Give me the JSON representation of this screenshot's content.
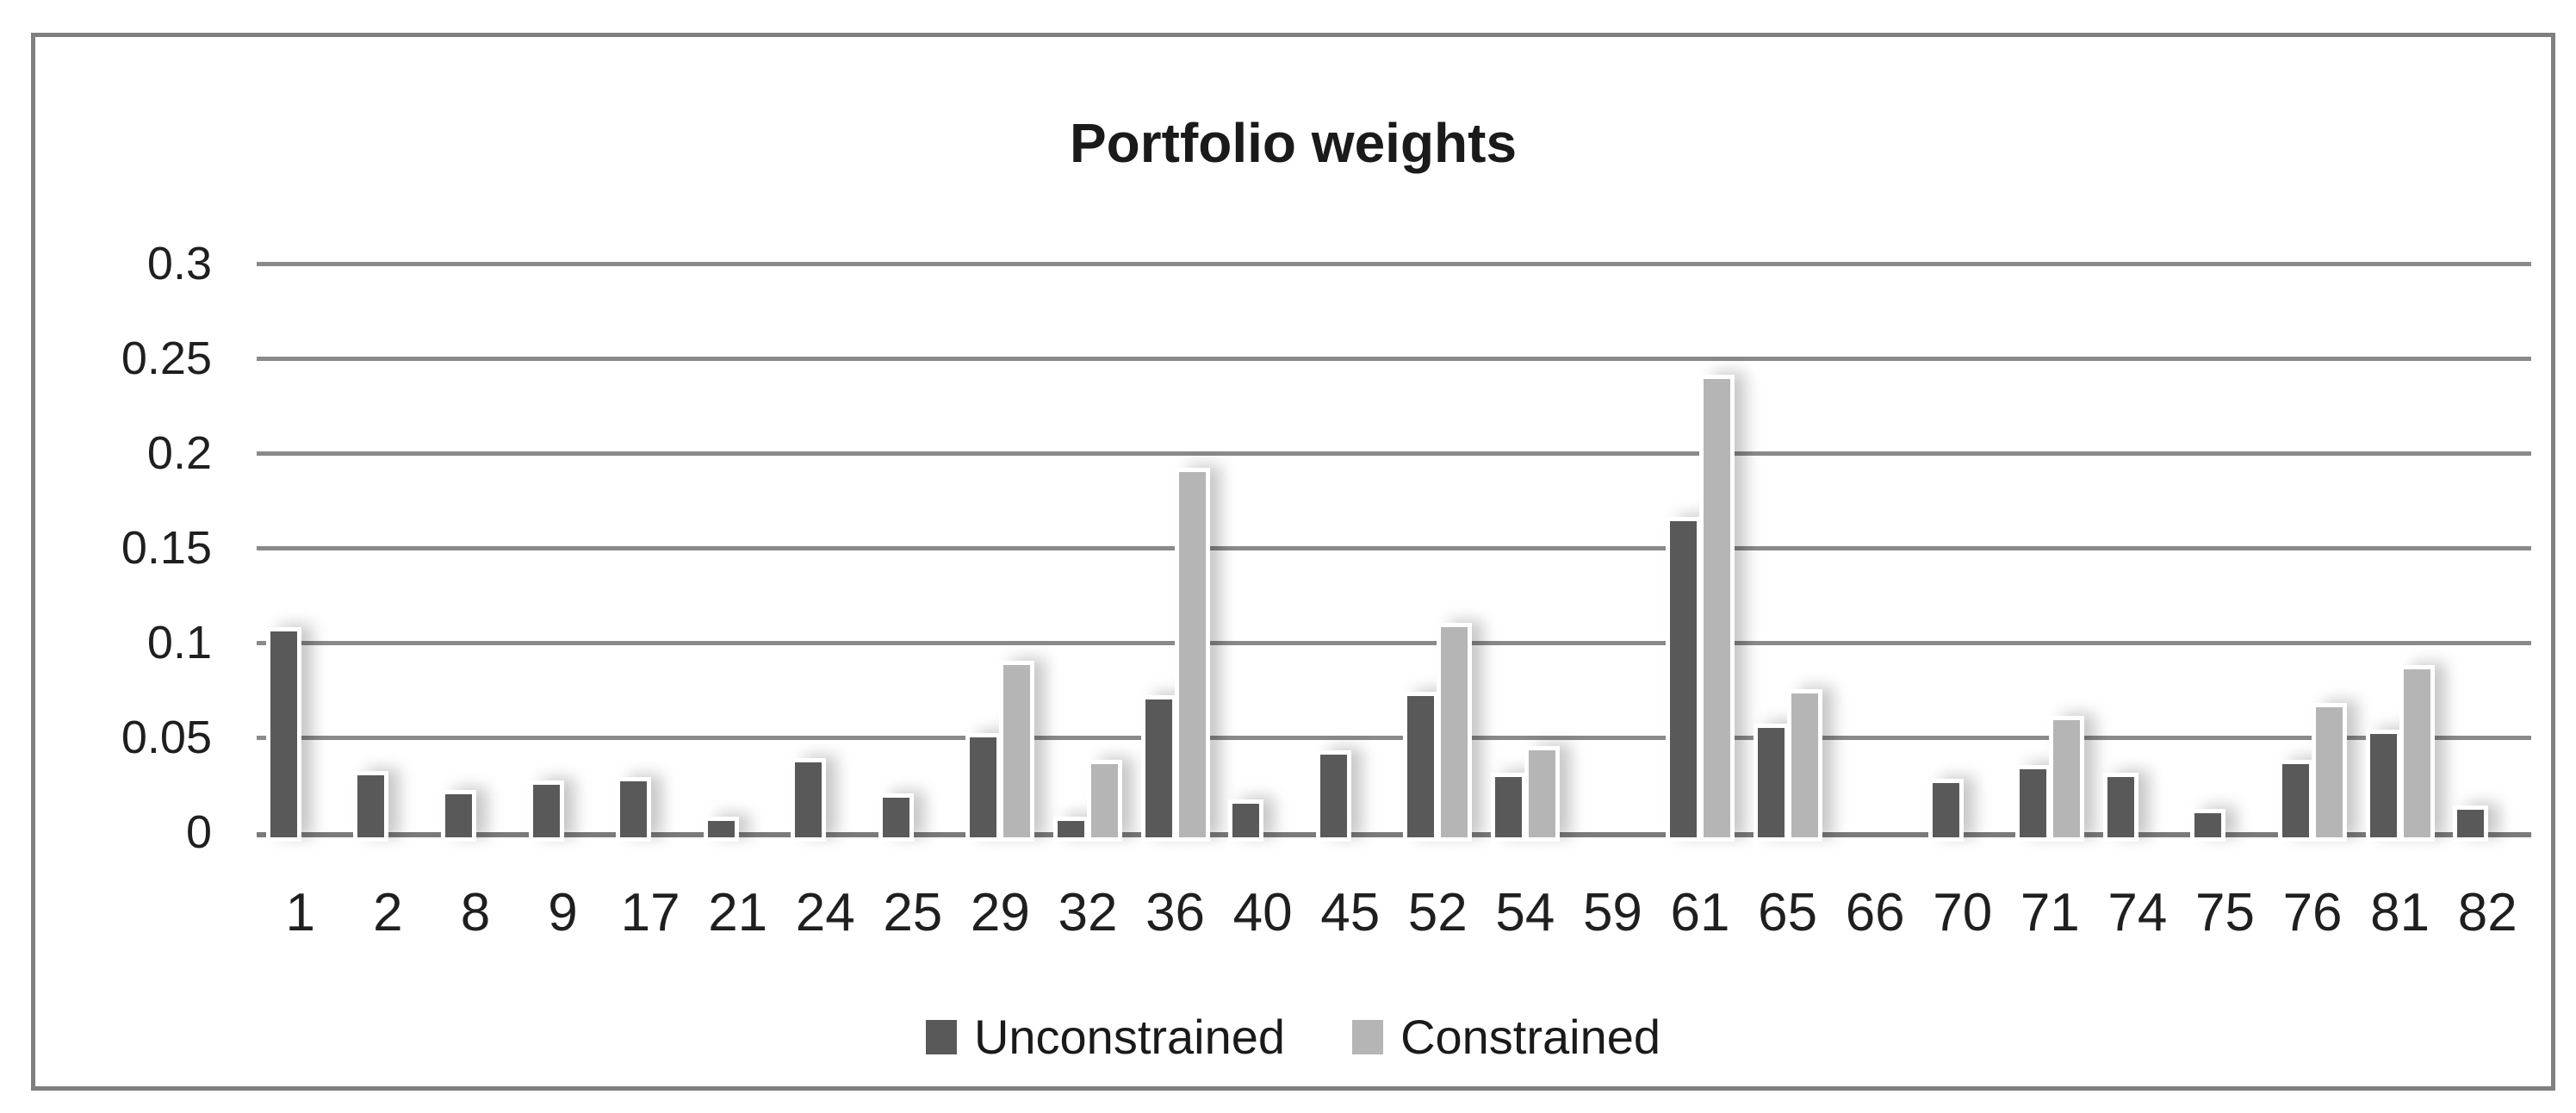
{
  "title": "Portfolio weights",
  "colors": {
    "unconstrained": "#595959",
    "constrained": "#b5b5b5",
    "gridline": "#8a8a8a",
    "axis_line": "#7a7a7a",
    "frame_border": "#7f7f7f",
    "text": "#1a1a1a",
    "background": "#ffffff"
  },
  "legend": {
    "items": [
      {
        "label": "Unconstrained",
        "color": "#595959"
      },
      {
        "label": "Constrained",
        "color": "#b5b5b5"
      }
    ]
  },
  "chart_data": {
    "type": "bar",
    "title": "Portfolio weights",
    "xlabel": "",
    "ylabel": "",
    "categories": [
      "1",
      "2",
      "8",
      "9",
      "17",
      "21",
      "24",
      "25",
      "29",
      "32",
      "36",
      "40",
      "45",
      "52",
      "54",
      "59",
      "61",
      "65",
      "66",
      "70",
      "71",
      "74",
      "75",
      "76",
      "81",
      "82"
    ],
    "series": [
      {
        "name": "Unconstrained",
        "color": "#595959",
        "values": [
          0.106,
          0.03,
          0.02,
          0.025,
          0.027,
          0.006,
          0.037,
          0.018,
          0.05,
          0.006,
          0.07,
          0.015,
          0.041,
          0.072,
          0.029,
          0,
          0.164,
          0.055,
          0,
          0.026,
          0.033,
          0.029,
          0.01,
          0.036,
          0.052,
          0.012
        ]
      },
      {
        "name": "Constrained",
        "color": "#b5b5b5",
        "values": [
          0,
          0,
          0,
          0,
          0,
          0,
          0,
          0,
          0.088,
          0.036,
          0.19,
          0,
          0,
          0.108,
          0.043,
          0,
          0.239,
          0.073,
          0,
          0,
          0.059,
          0,
          0,
          0.066,
          0.086,
          0
        ]
      }
    ],
    "ylim": [
      0,
      0.3
    ],
    "yticks": [
      0,
      0.05,
      0.1,
      0.15,
      0.2,
      0.25,
      0.3
    ],
    "ytick_labels": [
      "0",
      "0.05",
      "0.1",
      "0.15",
      "0.2",
      "0.25",
      "0.3"
    ],
    "grid": true,
    "legend_position": "bottom"
  }
}
